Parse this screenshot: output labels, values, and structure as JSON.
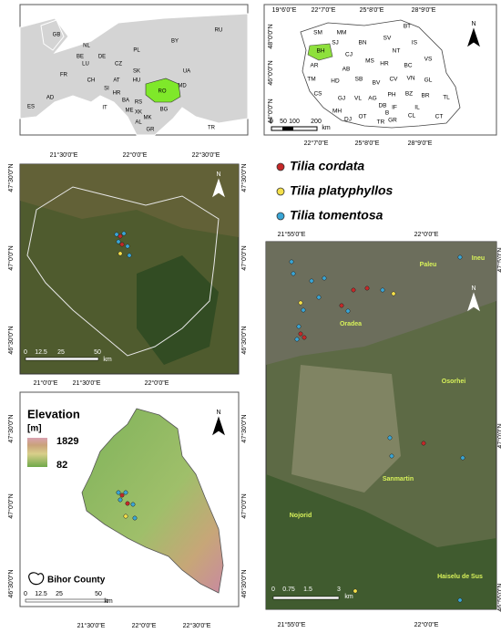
{
  "europe_map": {
    "countries": [
      "GB",
      "NL",
      "BE",
      "LU",
      "DE",
      "PL",
      "BY",
      "RU",
      "FR",
      "CH",
      "CZ",
      "SK",
      "UA",
      "AT",
      "HU",
      "SI",
      "HR",
      "BA",
      "RS",
      "RO",
      "MD",
      "BG",
      "AD",
      "ES",
      "IT",
      "ME",
      "XK",
      "MK",
      "AL",
      "GR",
      "TR"
    ]
  },
  "romania_map": {
    "lon_top": [
      "19°6'0\"E",
      "22°7'0\"E",
      "25°8'0\"E",
      "28°9'0\"E"
    ],
    "lon_bottom": [
      "22°7'0\"E",
      "25°8'0\"E",
      "28°9'0\"E"
    ],
    "lat_left": [
      "48°0'0\"N",
      "46°0'0\"N",
      "44°0'0\"N"
    ],
    "counties": [
      "SM",
      "MM",
      "BT",
      "SV",
      "SJ",
      "BH",
      "BN",
      "IS",
      "CJ",
      "NT",
      "MS",
      "AR",
      "VS",
      "AB",
      "HR",
      "BC",
      "TM",
      "HD",
      "SB",
      "BV",
      "CV",
      "VN",
      "GL",
      "CS",
      "GJ",
      "VL",
      "AG",
      "PH",
      "BZ",
      "BR",
      "TL",
      "MH",
      "DB",
      "IF",
      "B",
      "DJ",
      "OT",
      "TR",
      "GR",
      "IL",
      "CL",
      "CT"
    ],
    "scale": [
      "0",
      "50",
      "100",
      "200",
      "km"
    ],
    "north": "N"
  },
  "legend": [
    {
      "name": "Tilia cordata",
      "color": "#c62828"
    },
    {
      "name": "Tilia platyphyllos",
      "color": "#f5e04a"
    },
    {
      "name": "Tilia tomentosa",
      "color": "#3aa6d6"
    }
  ],
  "bihor_satellite": {
    "lon_top": [
      "21°30'0\"E",
      "22°0'0\"E",
      "22°30'0\"E"
    ],
    "lat_left": [
      "47°30'0\"N",
      "47°0'0\"N",
      "46°30'0\"N"
    ],
    "lat_right": [
      "47°30'0\"N",
      "47°0'0\"N",
      "46°30'0\"N"
    ],
    "scale": [
      "0",
      "12.5",
      "25",
      "50",
      "km"
    ],
    "north": "N"
  },
  "elevation_map": {
    "lon_top": [
      "21°0'0\"E",
      "21°30'0\"E",
      "22°0'0\"E"
    ],
    "lon_bottom": [
      "21°30'0\"E",
      "22°0'0\"E",
      "22°30'0\"E"
    ],
    "lat_left": [
      "47°30'0\"N",
      "47°0'0\"N",
      "46°30'0\"N"
    ],
    "lat_right": [
      "47°30'0\"N",
      "47°0'0\"N",
      "46°30'0\"N"
    ],
    "title": "Elevation",
    "unit": "[m]",
    "max": 1829,
    "min": 82,
    "outline_label": "Bihor County",
    "scale": [
      "0",
      "12.5",
      "25",
      "50",
      "km"
    ],
    "north": "N"
  },
  "oradea_map": {
    "lon_top": [
      "21°55'0\"E",
      "22°0'0\"E"
    ],
    "lon_bottom": [
      "21°55'0\"E",
      "22°0'0\"E"
    ],
    "lat_right": [
      "47°5'0\"N",
      "47°0'0\"N",
      "46°55'0\"N"
    ],
    "places": [
      "Paleu",
      "Ineu",
      "Oradea",
      "Osorhei",
      "Sanmartin",
      "Nojorid",
      "Haiselu de Sus"
    ],
    "scale": [
      "0",
      "0.75",
      "1.5",
      "3",
      "km"
    ],
    "north": "N"
  }
}
